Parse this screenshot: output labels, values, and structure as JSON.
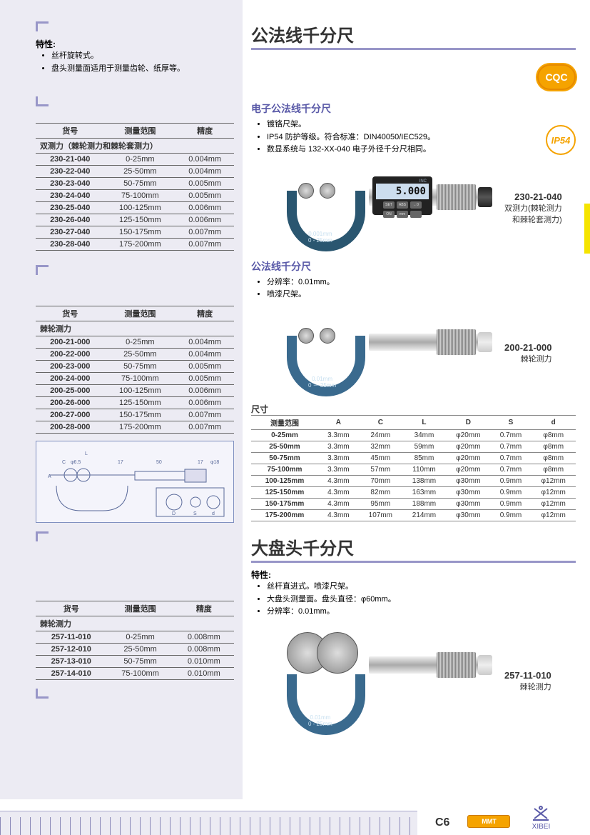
{
  "left": {
    "features_label": "特性:",
    "features": [
      "丝杆旋转式。",
      "盘头测量面适用于测量齿轮、纸厚等。"
    ],
    "table1": {
      "headers": [
        "货号",
        "测量范围",
        "精度"
      ],
      "subheader": "双测力（棘轮测力和棘轮套测力）",
      "rows": [
        [
          "230-21-040",
          "0-25mm",
          "0.004mm"
        ],
        [
          "230-22-040",
          "25-50mm",
          "0.004mm"
        ],
        [
          "230-23-040",
          "50-75mm",
          "0.005mm"
        ],
        [
          "230-24-040",
          "75-100mm",
          "0.005mm"
        ],
        [
          "230-25-040",
          "100-125mm",
          "0.006mm"
        ],
        [
          "230-26-040",
          "125-150mm",
          "0.006mm"
        ],
        [
          "230-27-040",
          "150-175mm",
          "0.007mm"
        ],
        [
          "230-28-040",
          "175-200mm",
          "0.007mm"
        ]
      ]
    },
    "table2": {
      "headers": [
        "货号",
        "测量范围",
        "精度"
      ],
      "subheader": "棘轮测力",
      "rows": [
        [
          "200-21-000",
          "0-25mm",
          "0.004mm"
        ],
        [
          "200-22-000",
          "25-50mm",
          "0.004mm"
        ],
        [
          "200-23-000",
          "50-75mm",
          "0.005mm"
        ],
        [
          "200-24-000",
          "75-100mm",
          "0.005mm"
        ],
        [
          "200-25-000",
          "100-125mm",
          "0.006mm"
        ],
        [
          "200-26-000",
          "125-150mm",
          "0.006mm"
        ],
        [
          "200-27-000",
          "150-175mm",
          "0.007mm"
        ],
        [
          "200-28-000",
          "175-200mm",
          "0.007mm"
        ]
      ]
    },
    "drawing_labels": {
      "L": "L",
      "C": "C",
      "A": "A",
      "d65": "φ6.5",
      "seventeen": "17",
      "fifty": "50",
      "d18": "φ18",
      "S": "S",
      "d": "d",
      "D": "D"
    },
    "table3": {
      "headers": [
        "货号",
        "测量范围",
        "精度"
      ],
      "subheader": "棘轮测力",
      "rows": [
        [
          "257-11-010",
          "0-25mm",
          "0.008mm"
        ],
        [
          "257-12-010",
          "25-50mm",
          "0.008mm"
        ],
        [
          "257-13-010",
          "50-75mm",
          "0.010mm"
        ],
        [
          "257-14-010",
          "75-100mm",
          "0.010mm"
        ]
      ]
    }
  },
  "right": {
    "title1": "公法线千分尺",
    "sub1": "电子公法线千分尺",
    "bullets1": [
      "镀铬尺架。",
      "IP54 防护等级。符合标准：DIN40050/IEC529。",
      "数显系统与 132-XX-040 电子外径千分尺相同。"
    ],
    "lcd": "5.000",
    "lcd_inc": "INC",
    "frame1_text": "0.001mm\n0 - 25mm",
    "cap1_code": "230-21-040",
    "cap1_line1": "双测力(棘轮测力",
    "cap1_line2": "和棘轮套测力)",
    "sub2": "公法线千分尺",
    "bullets2": [
      "分辨率：0.01mm。",
      "喷漆尺架。"
    ],
    "frame2_text": "0.01mm\n0 － 25mm",
    "cap2_code": "200-21-000",
    "cap2_line1": "棘轮测力",
    "dims_label": "尺寸",
    "dims": {
      "headers": [
        "测量范围",
        "A",
        "C",
        "L",
        "D",
        "S",
        "d"
      ],
      "rows": [
        [
          "0-25mm",
          "3.3mm",
          "24mm",
          "34mm",
          "φ20mm",
          "0.7mm",
          "φ8mm"
        ],
        [
          "25-50mm",
          "3.3mm",
          "32mm",
          "59mm",
          "φ20mm",
          "0.7mm",
          "φ8mm"
        ],
        [
          "50-75mm",
          "3.3mm",
          "45mm",
          "85mm",
          "φ20mm",
          "0.7mm",
          "φ8mm"
        ],
        [
          "75-100mm",
          "3.3mm",
          "57mm",
          "110mm",
          "φ20mm",
          "0.7mm",
          "φ8mm"
        ],
        [
          "100-125mm",
          "4.3mm",
          "70mm",
          "138mm",
          "φ30mm",
          "0.9mm",
          "φ12mm"
        ],
        [
          "125-150mm",
          "4.3mm",
          "82mm",
          "163mm",
          "φ30mm",
          "0.9mm",
          "φ12mm"
        ],
        [
          "150-175mm",
          "4.3mm",
          "95mm",
          "188mm",
          "φ30mm",
          "0.9mm",
          "φ12mm"
        ],
        [
          "175-200mm",
          "4.3mm",
          "107mm",
          "214mm",
          "φ30mm",
          "0.9mm",
          "φ12mm"
        ]
      ]
    },
    "title2": "大盘头千分尺",
    "features2_label": "特性:",
    "bullets3": [
      "丝杆直进式。喷漆尺架。",
      "大盘头测量面。盘头直径：φ60mm。",
      "分辨率：0.01mm。"
    ],
    "frame3_text": "0.01mm\n0 - 25mm",
    "cap3_code": "257-11-010",
    "cap3_line1": "棘轮测力",
    "cqc_text": "CQC",
    "ip54_text": "IP54"
  },
  "footer": {
    "page": "C6",
    "mmt": "MMT",
    "brand": "XIBEI"
  }
}
